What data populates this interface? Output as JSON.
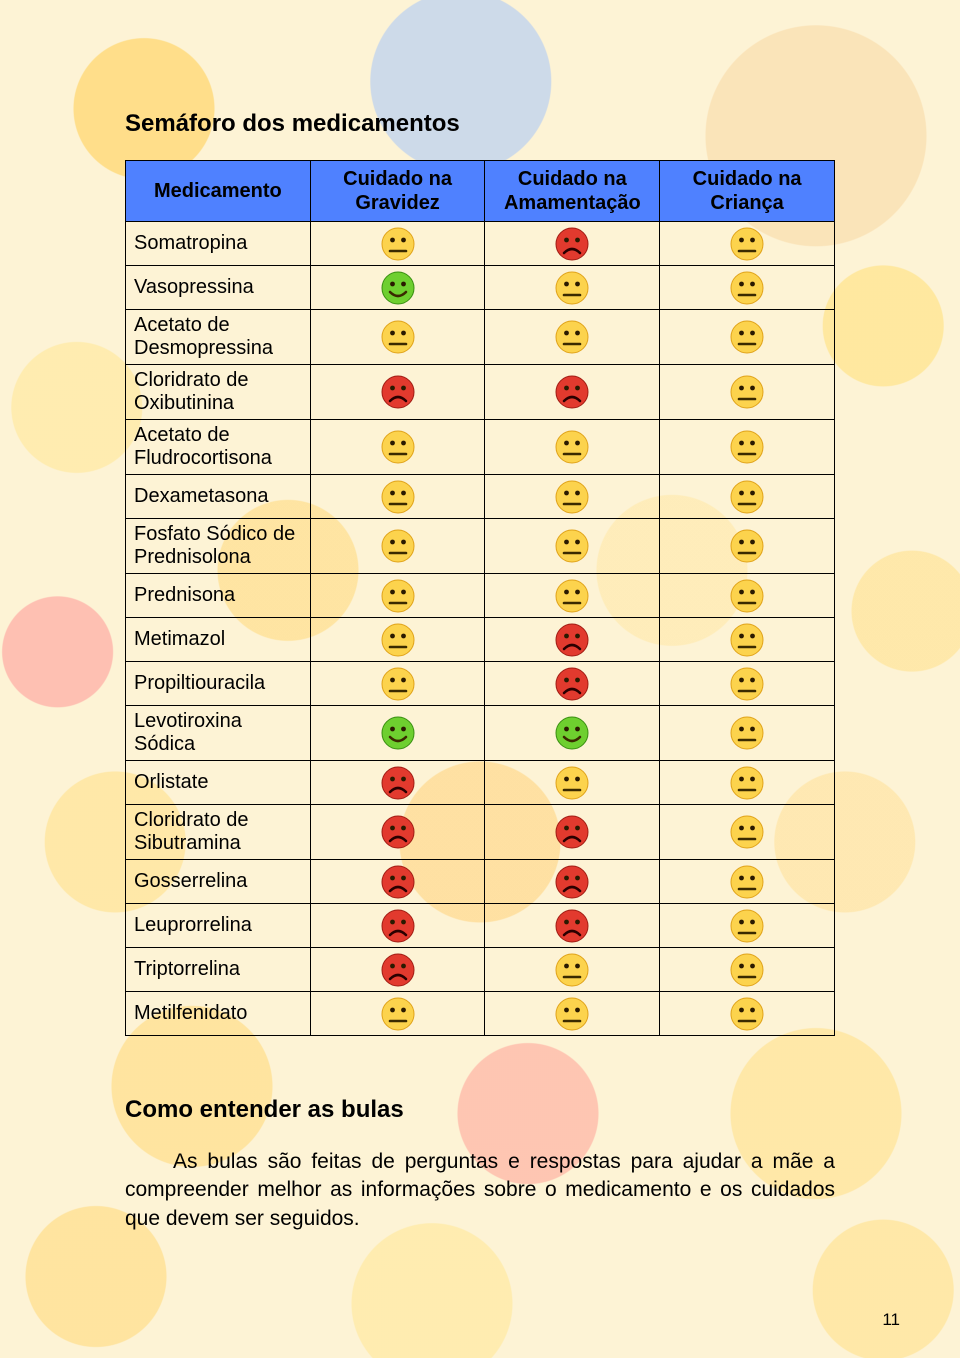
{
  "section_title": "Semáforo dos medicamentos",
  "table": {
    "columns": [
      "Medicamento",
      "Cuidado na Gravidez",
      "Cuidado na Amamentação",
      "Cuidado na Criança"
    ],
    "header_bg": "#4f81ff",
    "border_color": "#000000",
    "face_colors": {
      "green": {
        "fill": "#6ecf2f",
        "stroke": "#3a8f12"
      },
      "yellow": {
        "fill": "#fcd34d",
        "stroke": "#e0a31a"
      },
      "red": {
        "fill": "#e23a2e",
        "stroke": "#a11d14"
      }
    },
    "face_size": 34,
    "rows": [
      {
        "name": "Somatropina",
        "g": "yellow",
        "a": "red",
        "c": "yellow"
      },
      {
        "name": "Vasopressina",
        "g": "green",
        "a": "yellow",
        "c": "yellow"
      },
      {
        "name": "Acetato de Desmopressina",
        "g": "yellow",
        "a": "yellow",
        "c": "yellow"
      },
      {
        "name": "Cloridrato de Oxibutinina",
        "g": "red",
        "a": "red",
        "c": "yellow"
      },
      {
        "name": "Acetato de Fludrocortisona",
        "g": "yellow",
        "a": "yellow",
        "c": "yellow"
      },
      {
        "name": "Dexametasona",
        "g": "yellow",
        "a": "yellow",
        "c": "yellow"
      },
      {
        "name": "Fosfato Sódico de Prednisolona",
        "g": "yellow",
        "a": "yellow",
        "c": "yellow"
      },
      {
        "name": "Prednisona",
        "g": "yellow",
        "a": "yellow",
        "c": "yellow"
      },
      {
        "name": "Metimazol",
        "g": "yellow",
        "a": "red",
        "c": "yellow"
      },
      {
        "name": "Propiltiouracila",
        "g": "yellow",
        "a": "red",
        "c": "yellow"
      },
      {
        "name": "Levotiroxina Sódica",
        "g": "green",
        "a": "green",
        "c": "yellow"
      },
      {
        "name": "Orlistate",
        "g": "red",
        "a": "yellow",
        "c": "yellow"
      },
      {
        "name": "Cloridrato de Sibutramina",
        "g": "red",
        "a": "red",
        "c": "yellow"
      },
      {
        "name": "Gosserrelina",
        "g": "red",
        "a": "red",
        "c": "yellow"
      },
      {
        "name": "Leuprorrelina",
        "g": "red",
        "a": "red",
        "c": "yellow"
      },
      {
        "name": "Triptorrelina",
        "g": "red",
        "a": "yellow",
        "c": "yellow"
      },
      {
        "name": "Metilfenidato",
        "g": "yellow",
        "a": "yellow",
        "c": "yellow"
      }
    ]
  },
  "sub_title": "Como entender as bulas",
  "body_text": "As bulas são feitas de perguntas e respostas para ajudar a mãe a compreender melhor as informações sobre o medicamento e os cuidados que devem ser seguidos.",
  "page_number": "11"
}
